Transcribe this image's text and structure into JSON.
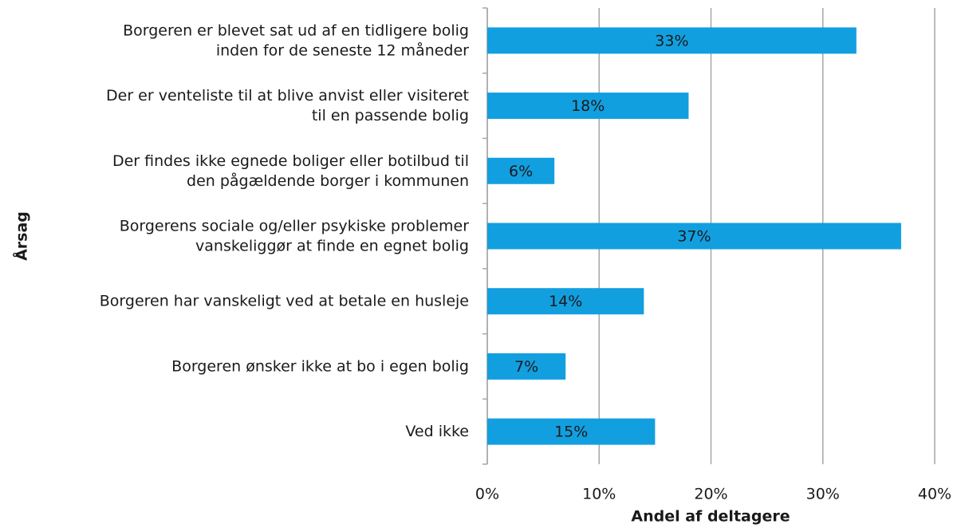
{
  "chart_data": {
    "type": "bar",
    "orientation": "horizontal",
    "categories": [
      "Borgeren er blevet sat ud af en tidligere bolig\ninden for de seneste 12 måneder",
      "Der er venteliste til at blive anvist eller visiteret\ntil en passende bolig",
      "Der findes ikke egnede boliger eller botilbud til\nden pågældende borger i kommunen",
      "Borgerens sociale og/eller psykiske problemer\nvanskeliggør at finde en egnet bolig",
      "Borgeren har vanskeligt ved at betale en husleje",
      "Borgeren ønsker ikke at bo i egen bolig",
      "Ved ikke"
    ],
    "values": [
      33,
      18,
      6,
      37,
      14,
      7,
      15
    ],
    "value_labels": [
      "33%",
      "18%",
      "6%",
      "37%",
      "14%",
      "7%",
      "15%"
    ],
    "color": "#129fe0",
    "xlim": [
      0,
      40
    ],
    "xticks": [
      {
        "value": 0,
        "label": "0%"
      },
      {
        "value": 10,
        "label": "10%"
      },
      {
        "value": 20,
        "label": "20%"
      },
      {
        "value": 30,
        "label": "30%"
      },
      {
        "value": 40,
        "label": "40%"
      }
    ],
    "xlabel": "Andel af deltagere",
    "ylabel": "Årsag",
    "grid": true
  }
}
